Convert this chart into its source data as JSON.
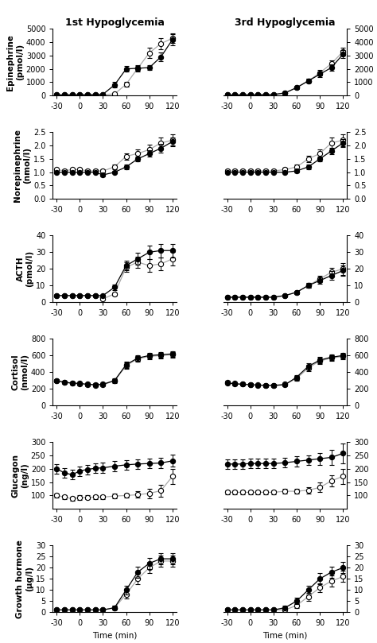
{
  "time": [
    -30,
    -20,
    -10,
    0,
    10,
    20,
    30,
    45,
    60,
    75,
    90,
    105,
    120
  ],
  "panels": [
    {
      "title_left": "1st Hypoglycemia",
      "title_right": "3rd Hypoglycemia",
      "ylabel": "Epinephrine\n(pmol/l)",
      "ylim": [
        0,
        5000
      ],
      "yticks": [
        0,
        1000,
        2000,
        3000,
        4000,
        5000
      ],
      "left": {
        "filled": [
          50,
          55,
          60,
          65,
          65,
          70,
          100,
          800,
          2000,
          2050,
          2100,
          2900,
          4200
        ],
        "filled_err": [
          10,
          10,
          10,
          10,
          10,
          10,
          30,
          200,
          200,
          200,
          200,
          350,
          400
        ],
        "open": [
          50,
          55,
          60,
          65,
          65,
          70,
          80,
          120,
          850,
          2050,
          3200,
          3900,
          4300
        ],
        "open_err": [
          10,
          10,
          10,
          10,
          10,
          10,
          20,
          40,
          200,
          250,
          400,
          400,
          350
        ]
      },
      "right": {
        "filled": [
          50,
          55,
          60,
          65,
          65,
          70,
          80,
          200,
          600,
          1100,
          1600,
          2100,
          3100
        ],
        "filled_err": [
          10,
          10,
          10,
          10,
          10,
          10,
          20,
          50,
          80,
          150,
          200,
          250,
          300
        ],
        "open": [
          50,
          55,
          60,
          65,
          65,
          70,
          80,
          200,
          600,
          1100,
          1700,
          2400,
          3300
        ],
        "open_err": [
          10,
          10,
          10,
          10,
          10,
          10,
          20,
          50,
          80,
          150,
          200,
          250,
          300
        ]
      }
    },
    {
      "ylabel": "Norepinephrine\n(nmol/l)",
      "ylim": [
        0.0,
        2.5
      ],
      "yticks": [
        0.0,
        0.5,
        1.0,
        1.5,
        2.0,
        2.5
      ],
      "left": {
        "filled": [
          1.0,
          1.0,
          1.0,
          1.0,
          1.0,
          1.0,
          0.9,
          1.0,
          1.2,
          1.5,
          1.7,
          1.9,
          2.15
        ],
        "filled_err": [
          0.05,
          0.05,
          0.05,
          0.05,
          0.05,
          0.05,
          0.05,
          0.05,
          0.08,
          0.1,
          0.12,
          0.15,
          0.15
        ],
        "open": [
          1.1,
          1.05,
          1.1,
          1.1,
          1.05,
          1.05,
          1.05,
          1.2,
          1.6,
          1.7,
          1.85,
          2.1,
          2.2
        ],
        "open_err": [
          0.05,
          0.05,
          0.05,
          0.05,
          0.05,
          0.05,
          0.05,
          0.1,
          0.12,
          0.15,
          0.18,
          0.2,
          0.22
        ]
      },
      "right": {
        "filled": [
          1.0,
          1.0,
          1.0,
          1.0,
          1.0,
          1.0,
          1.0,
          1.0,
          1.05,
          1.2,
          1.5,
          1.8,
          2.1
        ],
        "filled_err": [
          0.04,
          0.04,
          0.04,
          0.04,
          0.04,
          0.04,
          0.04,
          0.05,
          0.06,
          0.08,
          0.1,
          0.13,
          0.15
        ],
        "open": [
          1.05,
          1.05,
          1.05,
          1.05,
          1.05,
          1.05,
          1.05,
          1.1,
          1.2,
          1.5,
          1.7,
          2.1,
          2.2
        ],
        "open_err": [
          0.05,
          0.05,
          0.05,
          0.05,
          0.05,
          0.05,
          0.05,
          0.08,
          0.1,
          0.12,
          0.15,
          0.2,
          0.22
        ]
      }
    },
    {
      "ylabel": "ACTH\n(pmol/l)",
      "ylim": [
        0,
        40
      ],
      "yticks": [
        0,
        10,
        20,
        30,
        40
      ],
      "left": {
        "filled": [
          4,
          4,
          4,
          4,
          4,
          4,
          4,
          9,
          22,
          26,
          30,
          31,
          31
        ],
        "filled_err": [
          0.5,
          0.5,
          0.5,
          0.5,
          0.5,
          0.5,
          0.5,
          1.5,
          3,
          3.5,
          4,
          4,
          4
        ],
        "open": [
          4,
          4,
          4,
          4,
          4,
          4,
          2,
          5,
          21,
          24,
          22,
          23,
          26
        ],
        "open_err": [
          0.5,
          0.5,
          0.5,
          0.5,
          0.5,
          0.5,
          0.5,
          1,
          3,
          3.5,
          4,
          4,
          4
        ]
      },
      "right": {
        "filled": [
          3,
          3,
          3,
          3,
          3,
          3,
          3,
          4,
          6,
          10,
          13,
          16,
          19
        ],
        "filled_err": [
          0.3,
          0.3,
          0.3,
          0.3,
          0.3,
          0.3,
          0.3,
          0.5,
          1,
          1.5,
          2,
          2.5,
          3
        ],
        "open": [
          3,
          3,
          3,
          3,
          3,
          3,
          3,
          4,
          6,
          10,
          14,
          18,
          20
        ],
        "open_err": [
          0.3,
          0.3,
          0.3,
          0.3,
          0.3,
          0.3,
          0.3,
          0.5,
          1,
          1.5,
          2,
          2.5,
          3.5
        ]
      }
    },
    {
      "ylabel": "Cortisol\n(nmol/l)",
      "ylim": [
        0,
        800
      ],
      "yticks": [
        0,
        200,
        400,
        600,
        800
      ],
      "left": {
        "filled": [
          300,
          280,
          270,
          265,
          255,
          250,
          255,
          300,
          490,
          570,
          600,
          610,
          620
        ],
        "filled_err": [
          15,
          15,
          15,
          15,
          15,
          15,
          15,
          25,
          35,
          35,
          35,
          35,
          35
        ],
        "open": [
          295,
          275,
          265,
          260,
          250,
          245,
          250,
          295,
          480,
          560,
          590,
          600,
          610
        ],
        "open_err": [
          15,
          15,
          15,
          15,
          15,
          15,
          15,
          25,
          35,
          35,
          35,
          35,
          35
        ]
      },
      "right": {
        "filled": [
          270,
          260,
          255,
          250,
          245,
          240,
          240,
          250,
          340,
          470,
          545,
          580,
          600
        ],
        "filled_err": [
          15,
          15,
          15,
          15,
          15,
          15,
          15,
          18,
          28,
          35,
          35,
          35,
          35
        ],
        "open": [
          280,
          265,
          258,
          252,
          248,
          243,
          245,
          255,
          325,
          450,
          535,
          570,
          590
        ],
        "open_err": [
          15,
          15,
          15,
          15,
          15,
          15,
          15,
          18,
          28,
          35,
          35,
          35,
          35
        ]
      }
    },
    {
      "ylabel": "Glucagon\n(ng/l)",
      "ylim": [
        50,
        300
      ],
      "yticks": [
        100,
        150,
        200,
        250,
        300
      ],
      "left": {
        "filled": [
          200,
          185,
          178,
          192,
          198,
          202,
          204,
          210,
          215,
          218,
          220,
          222,
          230
        ],
        "filled_err": [
          18,
          18,
          18,
          18,
          18,
          18,
          18,
          18,
          18,
          18,
          18,
          18,
          22
        ],
        "open": [
          100,
          94,
          88,
          92,
          93,
          94,
          94,
          98,
          100,
          103,
          108,
          118,
          172
        ],
        "open_err": [
          8,
          8,
          8,
          8,
          8,
          8,
          8,
          8,
          8,
          12,
          18,
          22,
          28
        ]
      },
      "right": {
        "filled": [
          218,
          218,
          218,
          220,
          220,
          220,
          220,
          223,
          228,
          233,
          238,
          243,
          258
        ],
        "filled_err": [
          18,
          18,
          18,
          18,
          18,
          18,
          18,
          18,
          18,
          18,
          22,
          28,
          38
        ],
        "open": [
          112,
          112,
          112,
          112,
          112,
          112,
          112,
          116,
          116,
          120,
          130,
          155,
          172
        ],
        "open_err": [
          8,
          8,
          8,
          8,
          8,
          8,
          8,
          8,
          8,
          12,
          18,
          22,
          28
        ]
      }
    },
    {
      "ylabel": "Growth hormone\n(μg/l)",
      "ylim": [
        0,
        30
      ],
      "yticks": [
        0,
        5,
        10,
        15,
        20,
        25,
        30
      ],
      "left": {
        "filled": [
          1,
          1,
          1,
          1,
          1,
          1,
          1,
          2,
          10,
          18,
          22,
          24,
          24
        ],
        "filled_err": [
          0.4,
          0.4,
          0.4,
          0.4,
          0.4,
          0.4,
          0.4,
          0.8,
          2,
          2.5,
          2.5,
          2.5,
          2.5
        ],
        "open": [
          1,
          1,
          1,
          1,
          1,
          1,
          1,
          2,
          8,
          15,
          20,
          23,
          23
        ],
        "open_err": [
          0.4,
          0.4,
          0.4,
          0.4,
          0.4,
          0.4,
          0.4,
          0.8,
          2,
          2.5,
          2.5,
          2.5,
          2.5
        ]
      },
      "right": {
        "filled": [
          1,
          1,
          1,
          1,
          1,
          1,
          1,
          2,
          5,
          10,
          15,
          18,
          20
        ],
        "filled_err": [
          0.4,
          0.4,
          0.4,
          0.4,
          0.4,
          0.4,
          0.4,
          0.8,
          1.5,
          2,
          2.5,
          2.5,
          2.5
        ],
        "open": [
          1,
          1,
          1,
          1,
          1,
          1,
          1,
          1,
          3,
          7,
          11,
          14,
          16
        ],
        "open_err": [
          0.4,
          0.4,
          0.4,
          0.4,
          0.4,
          0.4,
          0.4,
          0.5,
          1,
          1.8,
          2,
          2.5,
          2.5
        ]
      }
    }
  ],
  "xlabel": "Time (min)",
  "xticks": [
    -30,
    0,
    30,
    60,
    90,
    120
  ],
  "xlim": [
    -35,
    125
  ],
  "gray_linecolor": "#aaaaaa",
  "title_fontsize": 9,
  "label_fontsize": 7.5,
  "tick_fontsize": 7,
  "marker_size": 4.5,
  "linewidth": 0.9,
  "capsize": 2,
  "elinewidth": 0.7
}
